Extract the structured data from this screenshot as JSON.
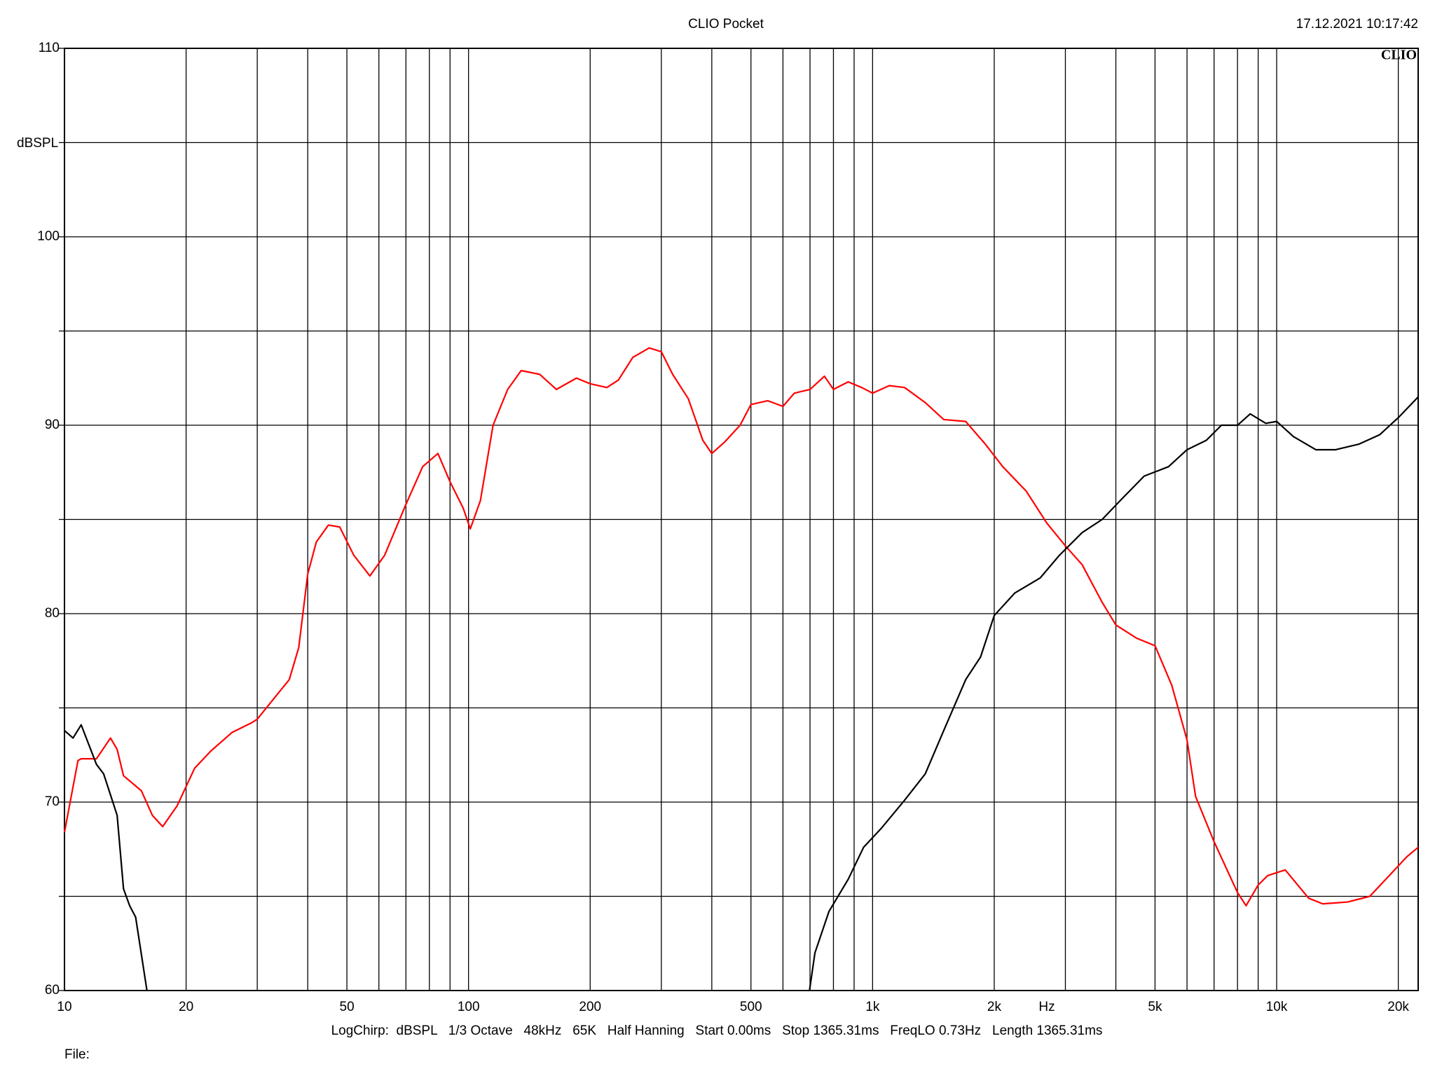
{
  "chart_data": {
    "type": "line",
    "title": "CLIO Pocket",
    "timestamp": "17.12.2021 10:17:42",
    "logo": "CLIO",
    "y_label": "dBSPL",
    "x_label": "Hz",
    "footer": "LogChirp:  dBSPL   1/3 Octave   48kHz   65K   Half Hanning   Start 0.00ms   Stop 1365.31ms   FreqLO 0.73Hz   Length 1365.31ms",
    "file_label": "File:",
    "x_log": true,
    "grid": true,
    "xlim": [
      10,
      22400
    ],
    "ylim": [
      60,
      110
    ],
    "xticks": [
      10,
      20,
      50,
      100,
      200,
      500,
      {
        "value": 1000,
        "label": "1k"
      },
      {
        "value": 2000,
        "label": "2k"
      },
      {
        "value": 5000,
        "label": "5k"
      },
      {
        "value": 10000,
        "label": "10k"
      },
      {
        "value": 20000,
        "label": "20k"
      }
    ],
    "x_minor_ticks": [
      30,
      40,
      60,
      70,
      80,
      90,
      300,
      400,
      600,
      700,
      800,
      900,
      3000,
      4000,
      6000,
      7000,
      8000,
      9000
    ],
    "yticks": [
      60,
      70,
      80,
      90,
      100,
      110
    ],
    "y_minor_ticks": [
      65,
      75,
      85,
      95,
      105
    ],
    "series": [
      {
        "color": "#ff0000",
        "x": [
          10,
          10.8,
          11,
          12,
          13,
          13.5,
          14,
          15.5,
          16.5,
          17.5,
          19,
          21,
          23,
          26,
          29,
          30,
          33,
          36,
          38,
          40,
          42,
          45,
          48,
          52,
          57,
          62,
          70,
          77,
          84,
          90,
          97,
          101,
          107,
          115,
          125,
          135,
          150,
          165,
          185,
          200,
          220,
          235,
          255,
          280,
          300,
          320,
          350,
          380,
          400,
          430,
          470,
          500,
          550,
          600,
          640,
          700,
          760,
          800,
          870,
          940,
          1000,
          1100,
          1200,
          1350,
          1500,
          1700,
          1900,
          2100,
          2400,
          2700,
          3000,
          3300,
          3700,
          4000,
          4500,
          5000,
          5500,
          6000,
          6300,
          7000,
          8000,
          8400,
          9000,
          9500,
          10500,
          12000,
          13000,
          15000,
          17000,
          19000,
          21000,
          22400
        ],
        "values": [
          68.4,
          72.2,
          72.3,
          72.3,
          73.4,
          72.8,
          71.4,
          70.6,
          69.3,
          68.7,
          69.8,
          71.8,
          72.7,
          73.7,
          74.2,
          74.4,
          75.5,
          76.5,
          78.2,
          82.1,
          83.8,
          84.7,
          84.6,
          83.1,
          82.0,
          83.1,
          85.8,
          87.8,
          88.5,
          87.0,
          85.6,
          84.5,
          86.0,
          90.0,
          91.9,
          92.9,
          92.7,
          91.9,
          92.5,
          92.2,
          92.0,
          92.4,
          93.6,
          94.1,
          93.9,
          92.7,
          91.4,
          89.2,
          88.5,
          89.1,
          90.0,
          91.1,
          91.3,
          91.0,
          91.7,
          91.9,
          92.6,
          91.9,
          92.3,
          92.0,
          91.7,
          92.1,
          92.0,
          91.2,
          90.3,
          90.2,
          89.0,
          87.8,
          86.5,
          84.8,
          83.6,
          82.6,
          80.6,
          79.4,
          78.7,
          78.3,
          76.2,
          73.3,
          70.3,
          67.9,
          65.2,
          64.5,
          65.6,
          66.1,
          66.4,
          64.9,
          64.6,
          64.7,
          65.0,
          66.1,
          67.1,
          67.6
        ]
      },
      {
        "color": "#000000",
        "x": [
          10,
          10.5,
          11,
          12,
          12.5,
          13.5,
          14,
          14.5,
          15,
          16,
          100,
          698,
          720,
          780,
          870,
          950,
          1050,
          1200,
          1350,
          1500,
          1700,
          1850,
          2000,
          2250,
          2600,
          2900,
          3300,
          3700,
          4100,
          4700,
          5400,
          6000,
          6700,
          7300,
          8000,
          8600,
          9400,
          10000,
          11000,
          12500,
          14000,
          16000,
          18000,
          20000,
          22400
        ],
        "values": [
          73.8,
          73.4,
          74.1,
          72.0,
          71.5,
          69.3,
          65.4,
          64.5,
          63.9,
          60,
          null,
          60,
          62.0,
          64.2,
          65.9,
          67.6,
          68.6,
          70.1,
          71.5,
          73.8,
          76.5,
          77.7,
          79.9,
          81.1,
          81.9,
          83.1,
          84.3,
          85.0,
          86.0,
          87.3,
          87.8,
          88.7,
          89.2,
          90.0,
          90.0,
          90.6,
          90.1,
          90.2,
          89.4,
          88.7,
          88.7,
          89.0,
          89.5,
          90.4,
          91.5
        ]
      }
    ]
  }
}
